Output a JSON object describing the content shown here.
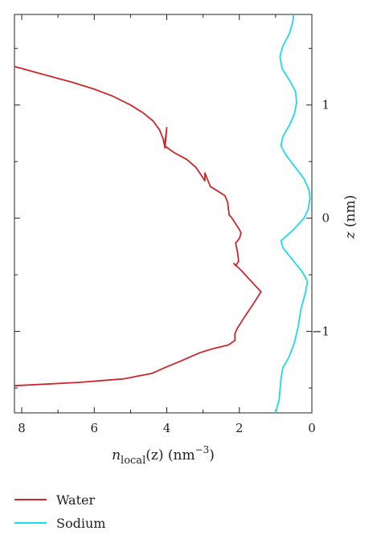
{
  "chart_data": {
    "type": "line",
    "title": "",
    "xlabel": {
      "main": "n",
      "sub": "local",
      "arg": "(z) (nm",
      "sup": "−3",
      "close": ")"
    },
    "ylabel": {
      "var": "z",
      "unit": " (nm)"
    },
    "xlim": [
      8.2,
      0
    ],
    "ylim": [
      -1.72,
      1.8
    ],
    "x_ticks": [
      8,
      6,
      4,
      2,
      0
    ],
    "x_tick_labels": [
      "8",
      "6",
      "4",
      "2",
      "0"
    ],
    "y_ticks": [
      1,
      0,
      -1
    ],
    "y_tick_labels": [
      "1",
      "0",
      "−1"
    ],
    "x_minor_ticks": [
      7,
      5,
      3,
      1
    ],
    "y_minor_ticks": [
      1.5,
      0.5,
      -0.5,
      -1.5
    ],
    "legend_position": "bottom-left, below plot",
    "series": [
      {
        "name": "Water",
        "color": "#c8282d",
        "points": [
          [
            8.2,
            1.34
          ],
          [
            7.4,
            1.27
          ],
          [
            6.6,
            1.2
          ],
          [
            6.0,
            1.14
          ],
          [
            5.5,
            1.08
          ],
          [
            5.0,
            1.0
          ],
          [
            4.65,
            0.93
          ],
          [
            4.38,
            0.86
          ],
          [
            4.2,
            0.78
          ],
          [
            4.1,
            0.7
          ],
          [
            4.05,
            0.62
          ],
          [
            4.0,
            0.8
          ],
          [
            4.06,
            0.64
          ],
          [
            3.8,
            0.58
          ],
          [
            3.45,
            0.52
          ],
          [
            3.2,
            0.45
          ],
          [
            3.05,
            0.38
          ],
          [
            2.95,
            0.33
          ],
          [
            2.95,
            0.4
          ],
          [
            2.8,
            0.28
          ],
          [
            2.6,
            0.24
          ],
          [
            2.4,
            0.2
          ],
          [
            2.32,
            0.14
          ],
          [
            2.3,
            0.08
          ],
          [
            2.28,
            0.03
          ],
          [
            2.2,
            0.0
          ],
          [
            2.1,
            -0.05
          ],
          [
            2.02,
            -0.09
          ],
          [
            1.95,
            -0.13
          ],
          [
            2.0,
            -0.18
          ],
          [
            2.1,
            -0.22
          ],
          [
            2.05,
            -0.3
          ],
          [
            2.02,
            -0.38
          ],
          [
            2.1,
            -0.42
          ],
          [
            2.15,
            -0.4
          ],
          [
            1.95,
            -0.46
          ],
          [
            1.75,
            -0.53
          ],
          [
            1.55,
            -0.6
          ],
          [
            1.4,
            -0.65
          ],
          [
            1.62,
            -0.76
          ],
          [
            1.85,
            -0.87
          ],
          [
            2.05,
            -0.97
          ],
          [
            2.12,
            -1.02
          ],
          [
            2.12,
            -1.08
          ],
          [
            2.3,
            -1.12
          ],
          [
            2.7,
            -1.15
          ],
          [
            3.1,
            -1.19
          ],
          [
            3.6,
            -1.26
          ],
          [
            4.05,
            -1.32
          ],
          [
            4.4,
            -1.37
          ],
          [
            5.2,
            -1.42
          ],
          [
            6.4,
            -1.45
          ],
          [
            7.6,
            -1.47
          ],
          [
            8.2,
            -1.48
          ]
        ]
      },
      {
        "name": "Sodium",
        "color": "#1fd8e8",
        "points": [
          [
            0.5,
            1.82
          ],
          [
            0.52,
            1.74
          ],
          [
            0.62,
            1.63
          ],
          [
            0.8,
            1.52
          ],
          [
            0.88,
            1.43
          ],
          [
            0.82,
            1.32
          ],
          [
            0.62,
            1.22
          ],
          [
            0.45,
            1.12
          ],
          [
            0.42,
            1.02
          ],
          [
            0.48,
            0.92
          ],
          [
            0.62,
            0.82
          ],
          [
            0.8,
            0.72
          ],
          [
            0.85,
            0.64
          ],
          [
            0.72,
            0.56
          ],
          [
            0.48,
            0.46
          ],
          [
            0.22,
            0.35
          ],
          [
            0.08,
            0.25
          ],
          [
            0.05,
            0.18
          ],
          [
            0.1,
            0.08
          ],
          [
            0.22,
            0.0
          ],
          [
            0.5,
            -0.1
          ],
          [
            0.85,
            -0.2
          ],
          [
            0.8,
            -0.26
          ],
          [
            0.55,
            -0.36
          ],
          [
            0.25,
            -0.48
          ],
          [
            0.12,
            -0.56
          ],
          [
            0.18,
            -0.66
          ],
          [
            0.3,
            -0.8
          ],
          [
            0.38,
            -0.96
          ],
          [
            0.48,
            -1.1
          ],
          [
            0.62,
            -1.22
          ],
          [
            0.72,
            -1.28
          ],
          [
            0.8,
            -1.32
          ],
          [
            0.85,
            -1.42
          ],
          [
            0.88,
            -1.52
          ],
          [
            0.9,
            -1.6
          ],
          [
            0.95,
            -1.66
          ],
          [
            1.0,
            -1.72
          ]
        ]
      }
    ]
  }
}
